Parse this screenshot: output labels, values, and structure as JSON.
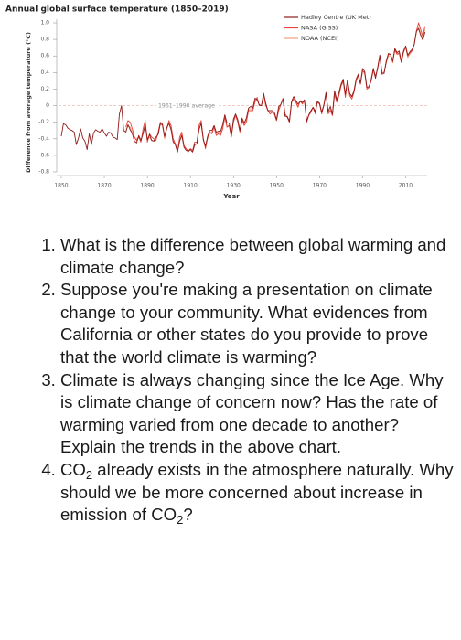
{
  "chart_data": {
    "type": "line",
    "title": "Annual global surface temperature (1850–2019)",
    "ylabel": "Difference from average temperature (°C)",
    "xlabel": "Year",
    "reference_line": {
      "value": 0,
      "label": "1961–1990 average"
    },
    "xlim": [
      1850,
      2020
    ],
    "ylim": [
      -0.8,
      1.0
    ],
    "xticks": [
      1850,
      1870,
      1890,
      1910,
      1930,
      1950,
      1970,
      1990,
      2010
    ],
    "yticks": [
      {
        "value": 1.0,
        "label": "1.0"
      },
      0.8,
      0.6,
      0.4,
      0.2,
      0,
      -0.2,
      -0.4,
      -0.6,
      -0.8
    ],
    "legend": "upper right",
    "x": [
      1850,
      1851,
      1852,
      1853,
      1854,
      1855,
      1856,
      1857,
      1858,
      1859,
      1860,
      1861,
      1862,
      1863,
      1864,
      1865,
      1866,
      1867,
      1868,
      1869,
      1870,
      1871,
      1872,
      1873,
      1874,
      1875,
      1876,
      1877,
      1878,
      1879,
      1880,
      1881,
      1882,
      1883,
      1884,
      1885,
      1886,
      1887,
      1888,
      1889,
      1890,
      1891,
      1892,
      1893,
      1894,
      1895,
      1896,
      1897,
      1898,
      1899,
      1900,
      1901,
      1902,
      1903,
      1904,
      1905,
      1906,
      1907,
      1908,
      1909,
      1910,
      1911,
      1912,
      1913,
      1914,
      1915,
      1916,
      1917,
      1918,
      1919,
      1920,
      1921,
      1922,
      1923,
      1924,
      1925,
      1926,
      1927,
      1928,
      1929,
      1930,
      1931,
      1932,
      1933,
      1934,
      1935,
      1936,
      1937,
      1938,
      1939,
      1940,
      1941,
      1942,
      1943,
      1944,
      1945,
      1946,
      1947,
      1948,
      1949,
      1950,
      1951,
      1952,
      1953,
      1954,
      1955,
      1956,
      1957,
      1958,
      1959,
      1960,
      1961,
      1962,
      1963,
      1964,
      1965,
      1966,
      1967,
      1968,
      1969,
      1970,
      1971,
      1972,
      1973,
      1974,
      1975,
      1976,
      1977,
      1978,
      1979,
      1980,
      1981,
      1982,
      1983,
      1984,
      1985,
      1986,
      1987,
      1988,
      1989,
      1990,
      1991,
      1992,
      1993,
      1994,
      1995,
      1996,
      1997,
      1998,
      1999,
      2000,
      2001,
      2002,
      2003,
      2004,
      2005,
      2006,
      2007,
      2008,
      2009,
      2010,
      2011,
      2012,
      2013,
      2014,
      2015,
      2016,
      2017,
      2018,
      2019
    ],
    "series": [
      {
        "name": "Hadley Centre (UK Met)",
        "color": "#8e1b1b",
        "values": [
          -0.37,
          -0.22,
          -0.23,
          -0.27,
          -0.29,
          -0.3,
          -0.32,
          -0.47,
          -0.39,
          -0.28,
          -0.39,
          -0.43,
          -0.53,
          -0.34,
          -0.47,
          -0.33,
          -0.29,
          -0.31,
          -0.32,
          -0.28,
          -0.33,
          -0.37,
          -0.32,
          -0.33,
          -0.38,
          -0.39,
          -0.41,
          -0.1,
          0.0,
          -0.3,
          -0.32,
          -0.23,
          -0.29,
          -0.34,
          -0.43,
          -0.45,
          -0.36,
          -0.42,
          -0.34,
          -0.23,
          -0.41,
          -0.35,
          -0.42,
          -0.43,
          -0.38,
          -0.35,
          -0.22,
          -0.23,
          -0.37,
          -0.27,
          -0.21,
          -0.29,
          -0.44,
          -0.47,
          -0.56,
          -0.43,
          -0.36,
          -0.5,
          -0.54,
          -0.55,
          -0.53,
          -0.56,
          -0.47,
          -0.46,
          -0.29,
          -0.21,
          -0.41,
          -0.49,
          -0.37,
          -0.3,
          -0.3,
          -0.24,
          -0.32,
          -0.31,
          -0.31,
          -0.23,
          -0.11,
          -0.21,
          -0.21,
          -0.37,
          -0.16,
          -0.1,
          -0.17,
          -0.3,
          -0.15,
          -0.21,
          -0.15,
          -0.03,
          -0.01,
          -0.03,
          0.09,
          0.07,
          0.01,
          0.0,
          0.15,
          0.03,
          -0.06,
          -0.06,
          -0.06,
          -0.08,
          -0.17,
          -0.01,
          0.01,
          0.08,
          -0.13,
          -0.13,
          -0.19,
          0.05,
          0.11,
          0.06,
          0.02,
          0.05,
          0.04,
          0.07,
          -0.19,
          -0.11,
          -0.06,
          -0.02,
          -0.07,
          0.05,
          0.03,
          -0.08,
          0.01,
          0.16,
          -0.07,
          -0.01,
          -0.1,
          0.18,
          0.07,
          0.16,
          0.26,
          0.32,
          0.14,
          0.31,
          0.15,
          0.11,
          0.18,
          0.32,
          0.38,
          0.27,
          0.45,
          0.41,
          0.22,
          0.23,
          0.32,
          0.45,
          0.33,
          0.46,
          0.61,
          0.38,
          0.39,
          0.54,
          0.63,
          0.62,
          0.54,
          0.69,
          0.64,
          0.66,
          0.54,
          0.66,
          0.72,
          0.61,
          0.65,
          0.68,
          0.74,
          0.9,
          0.93,
          0.85,
          0.79,
          0.89
        ]
      },
      {
        "name": "NASA (GISS)",
        "color": "#e8423a",
        "values": [
          null,
          null,
          null,
          null,
          null,
          null,
          null,
          null,
          null,
          null,
          null,
          null,
          null,
          null,
          null,
          null,
          null,
          null,
          null,
          null,
          null,
          null,
          null,
          null,
          null,
          null,
          null,
          null,
          null,
          null,
          -0.26,
          -0.18,
          -0.2,
          -0.28,
          -0.38,
          -0.42,
          -0.38,
          -0.44,
          -0.28,
          -0.18,
          -0.44,
          -0.34,
          -0.38,
          -0.4,
          -0.42,
          -0.32,
          -0.2,
          -0.22,
          -0.38,
          -0.28,
          -0.18,
          -0.24,
          -0.4,
          -0.46,
          -0.56,
          -0.38,
          -0.32,
          -0.48,
          -0.52,
          -0.56,
          -0.52,
          -0.54,
          -0.44,
          -0.44,
          -0.24,
          -0.18,
          -0.4,
          -0.52,
          -0.38,
          -0.32,
          -0.34,
          -0.26,
          -0.36,
          -0.34,
          -0.36,
          -0.28,
          -0.14,
          -0.26,
          -0.24,
          -0.38,
          -0.2,
          -0.12,
          -0.2,
          -0.32,
          -0.18,
          -0.24,
          -0.2,
          -0.06,
          -0.06,
          -0.06,
          0.04,
          0.1,
          0.0,
          0.0,
          0.12,
          0.0,
          -0.06,
          -0.1,
          -0.08,
          -0.1,
          -0.18,
          -0.06,
          0.01,
          0.09,
          -0.1,
          -0.14,
          -0.2,
          0.04,
          0.08,
          0.04,
          -0.02,
          0.06,
          0.02,
          0.06,
          -0.2,
          -0.12,
          -0.08,
          -0.02,
          -0.1,
          0.04,
          0.02,
          -0.1,
          0.0,
          0.14,
          -0.1,
          -0.06,
          -0.12,
          0.14,
          0.04,
          0.12,
          0.24,
          0.3,
          0.1,
          0.3,
          0.12,
          0.08,
          0.16,
          0.3,
          0.36,
          0.26,
          0.42,
          0.4,
          0.2,
          0.22,
          0.3,
          0.44,
          0.36,
          0.44,
          0.6,
          0.4,
          0.4,
          0.52,
          0.62,
          0.62,
          0.52,
          0.68,
          0.62,
          0.64,
          0.52,
          0.64,
          0.72,
          0.6,
          0.64,
          0.66,
          0.74,
          0.9,
          1.0,
          0.92,
          0.84,
          0.96
        ]
      },
      {
        "name": "NOAA (NCEI)",
        "color": "#f4a07a",
        "values": [
          null,
          null,
          null,
          null,
          null,
          null,
          null,
          null,
          null,
          null,
          null,
          null,
          null,
          null,
          null,
          null,
          null,
          null,
          null,
          null,
          null,
          null,
          null,
          null,
          null,
          null,
          null,
          null,
          null,
          null,
          -0.3,
          -0.24,
          -0.26,
          -0.32,
          -0.4,
          -0.4,
          -0.38,
          -0.42,
          -0.32,
          -0.22,
          -0.42,
          -0.38,
          -0.42,
          -0.42,
          -0.4,
          -0.34,
          -0.22,
          -0.24,
          -0.4,
          -0.28,
          -0.22,
          -0.26,
          -0.42,
          -0.48,
          -0.54,
          -0.42,
          -0.34,
          -0.5,
          -0.52,
          -0.54,
          -0.52,
          -0.56,
          -0.48,
          -0.46,
          -0.28,
          -0.22,
          -0.42,
          -0.5,
          -0.4,
          -0.34,
          -0.32,
          -0.26,
          -0.34,
          -0.32,
          -0.34,
          -0.26,
          -0.14,
          -0.24,
          -0.24,
          -0.36,
          -0.18,
          -0.12,
          -0.18,
          -0.3,
          -0.16,
          -0.22,
          -0.18,
          -0.04,
          -0.04,
          -0.04,
          0.06,
          0.08,
          0.0,
          0.0,
          0.14,
          0.02,
          -0.06,
          -0.08,
          -0.08,
          -0.1,
          -0.18,
          -0.04,
          0.02,
          0.08,
          -0.12,
          -0.14,
          -0.2,
          0.04,
          0.1,
          0.05,
          0.0,
          0.05,
          0.03,
          0.06,
          -0.18,
          -0.12,
          -0.06,
          -0.02,
          -0.08,
          0.05,
          0.02,
          -0.08,
          0.01,
          0.15,
          -0.08,
          -0.04,
          -0.1,
          0.16,
          0.05,
          0.14,
          0.24,
          0.28,
          0.12,
          0.3,
          0.13,
          0.1,
          0.16,
          0.3,
          0.36,
          0.26,
          0.42,
          0.38,
          0.2,
          0.22,
          0.3,
          0.42,
          0.34,
          0.46,
          0.6,
          0.4,
          0.4,
          0.52,
          0.6,
          0.6,
          0.54,
          0.66,
          0.62,
          0.62,
          0.52,
          0.64,
          0.7,
          0.58,
          0.62,
          0.66,
          0.74,
          0.88,
          0.95,
          0.88,
          0.82,
          0.92
        ]
      }
    ]
  },
  "questions": [
    [
      {
        "text": "What is the difference between global warming and climate change?"
      }
    ],
    [
      {
        "text": "Suppose you're making a presentation on climate change to your community. What evidences from California or other states do you provide to prove that the world climate is warming?"
      }
    ],
    [
      {
        "text": "Climate is always changing since the Ice Age. Why is climate change of concern now? Has the rate of warming varied from one decade to another? Explain the trends in the above chart."
      }
    ],
    [
      {
        "text": "CO"
      },
      {
        "sub": "2"
      },
      {
        "text": " already exists in the atmosphere naturally. Why should we be more concerned about increase in emission of "
      },
      {
        "text": "CO"
      },
      {
        "sub": "2"
      },
      {
        "text": "?"
      }
    ]
  ]
}
